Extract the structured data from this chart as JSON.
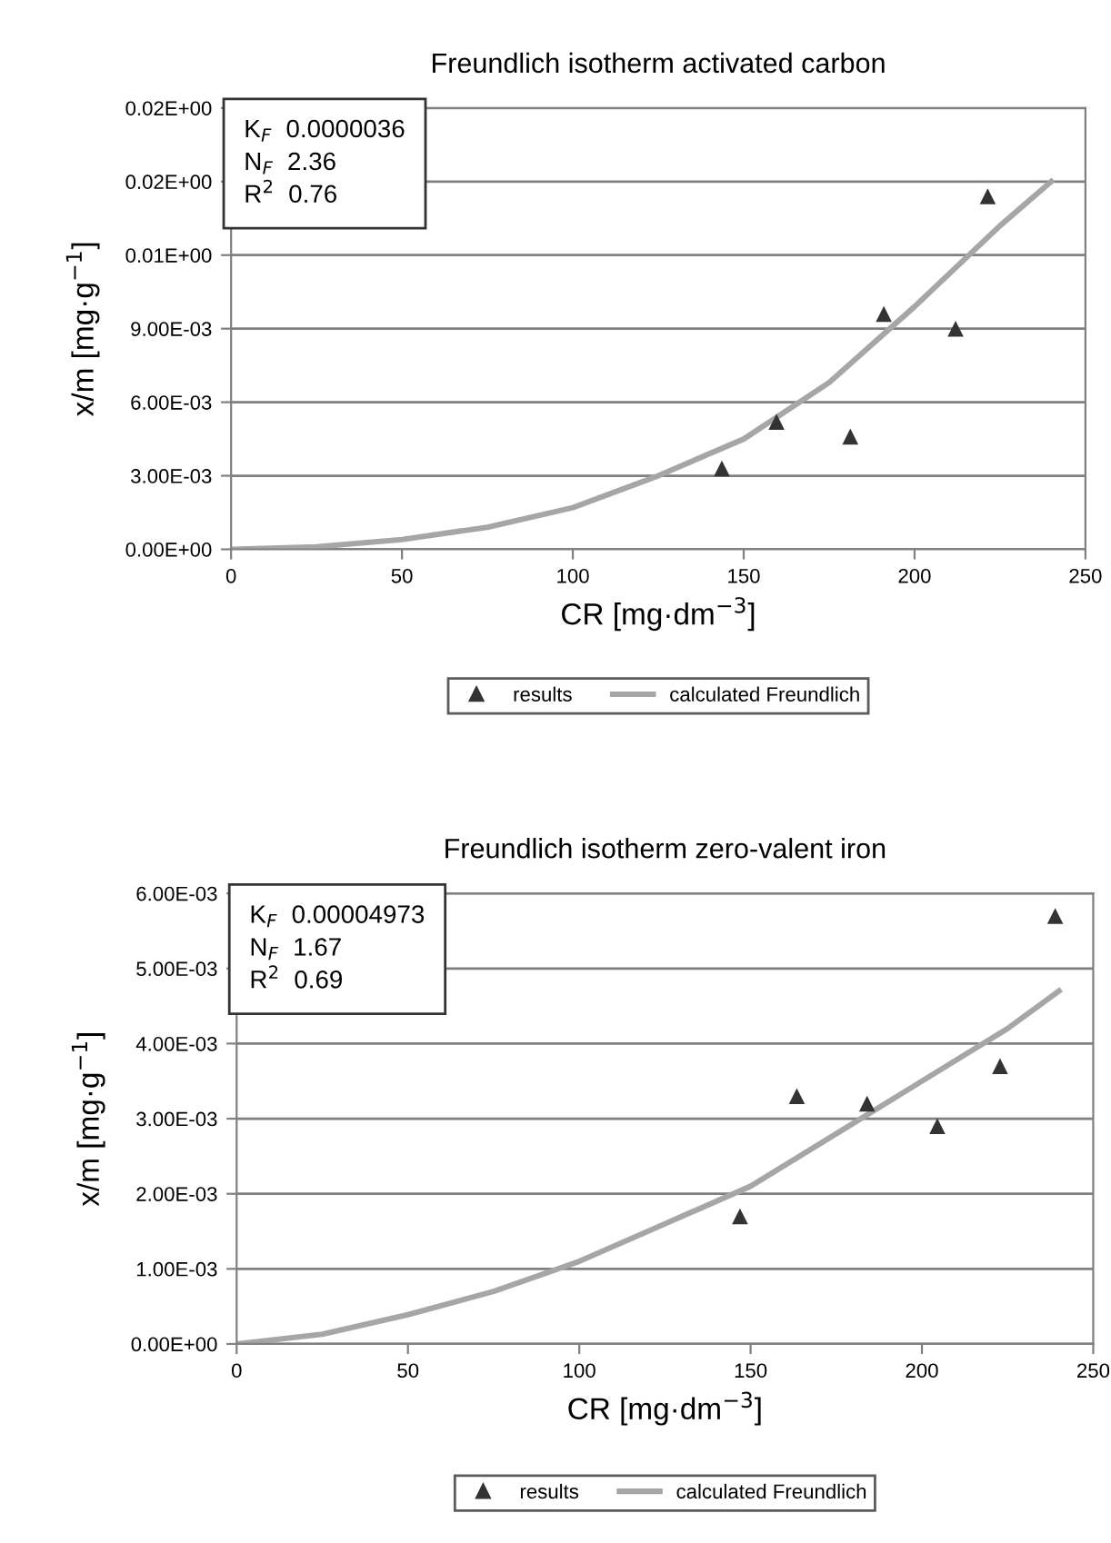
{
  "chart_data": [
    {
      "type": "scatter",
      "title": "Freundlich isotherm activated carbon",
      "xlabel": "CR [mg·dm$^{−3}$]",
      "ylabel": "x/m [mg·g$^{−1}$]",
      "annotations": [
        "K$_{F}$  0.0000036\nN$_{F}$  2.36\nR$^{2}$  0.76"
      ],
      "xlim": [
        0,
        250
      ],
      "xticks": [
        0,
        50,
        100,
        150,
        200,
        250
      ],
      "ylim": [
        0,
        0.018
      ],
      "yticks": [
        {
          "value": 0,
          "label": "0.00E+00"
        },
        {
          "value": 0.003,
          "label": "3.00E-03"
        },
        {
          "value": 0.006,
          "label": "6.00E-03"
        },
        {
          "value": 0.009,
          "label": "9.00E-03"
        },
        {
          "value": 0.012,
          "label": "0.01E+00"
        },
        {
          "value": 0.015,
          "label": "0.02E+00"
        },
        {
          "value": 0.018,
          "label": "0.02E+00"
        }
      ],
      "grid": "y",
      "legend": "bottom",
      "series": [
        {
          "name": "results",
          "marker": "triangle",
          "color": "#333333",
          "x": [
            143.6,
            159.6,
            181.2,
            191,
            212,
            221.4
          ],
          "values": [
            0.0033,
            0.0052,
            0.0046,
            0.0096,
            0.009,
            0.0144
          ]
        },
        {
          "name": "calculated Freundlich",
          "type": "line",
          "marker": "none",
          "color": "#a6a6a6",
          "x": [
            0,
            25,
            50,
            75,
            100,
            125,
            150,
            175,
            200,
            225,
            240
          ],
          "values": [
            0,
            0.0001,
            0.0004,
            0.0009,
            0.0017,
            0.003,
            0.0045,
            0.0068,
            0.0099,
            0.0132,
            0.015
          ]
        }
      ]
    },
    {
      "type": "scatter",
      "title": "Freundlich isotherm zero-valent iron",
      "xlabel": "CR [mg·dm$^{−3}$]",
      "ylabel": "x/m [mg·g$^{−1}$]",
      "annotations": [
        "K$_{F}$  0.00004973\nN$_{F}$  1.67\nR$^{2}$  0.69"
      ],
      "xlim": [
        0,
        250
      ],
      "xticks": [
        0,
        50,
        100,
        150,
        200,
        {
          "value": 250,
          "label": "250"
        }
      ],
      "ylim": [
        0,
        0.006
      ],
      "yticks": [
        {
          "value": 0,
          "label": "0.00E+00"
        },
        {
          "value": 0.001,
          "label": "1.00E-03"
        },
        {
          "value": 0.002,
          "label": "2.00E-03"
        },
        {
          "value": 0.003,
          "label": "3.00E-03"
        },
        {
          "value": 0.004,
          "label": "4.00E-03"
        },
        {
          "value": 0.005,
          "label": "5.00E-03"
        },
        {
          "value": 0.006,
          "label": "6.00E-03"
        }
      ],
      "grid": "y",
      "legend": "bottom",
      "series": [
        {
          "name": "results",
          "marker": "triangle",
          "color": "#333333",
          "x": [
            146.9,
            163.5,
            184,
            204.5,
            222.8,
            238.9
          ],
          "values": [
            0.0017,
            0.0033,
            0.0032,
            0.0029,
            0.0037,
            0.0057
          ]
        },
        {
          "name": "calculated Freundlich",
          "type": "line",
          "marker": "none",
          "color": "#a6a6a6",
          "x": [
            0,
            25,
            50,
            75,
            100,
            125,
            150,
            175,
            200,
            225,
            240
          ],
          "values": [
            0,
            0.00013,
            0.00039,
            0.0007,
            0.0011,
            0.0016,
            0.0021,
            0.0028,
            0.0035,
            0.0042,
            0.0047
          ]
        }
      ]
    }
  ]
}
